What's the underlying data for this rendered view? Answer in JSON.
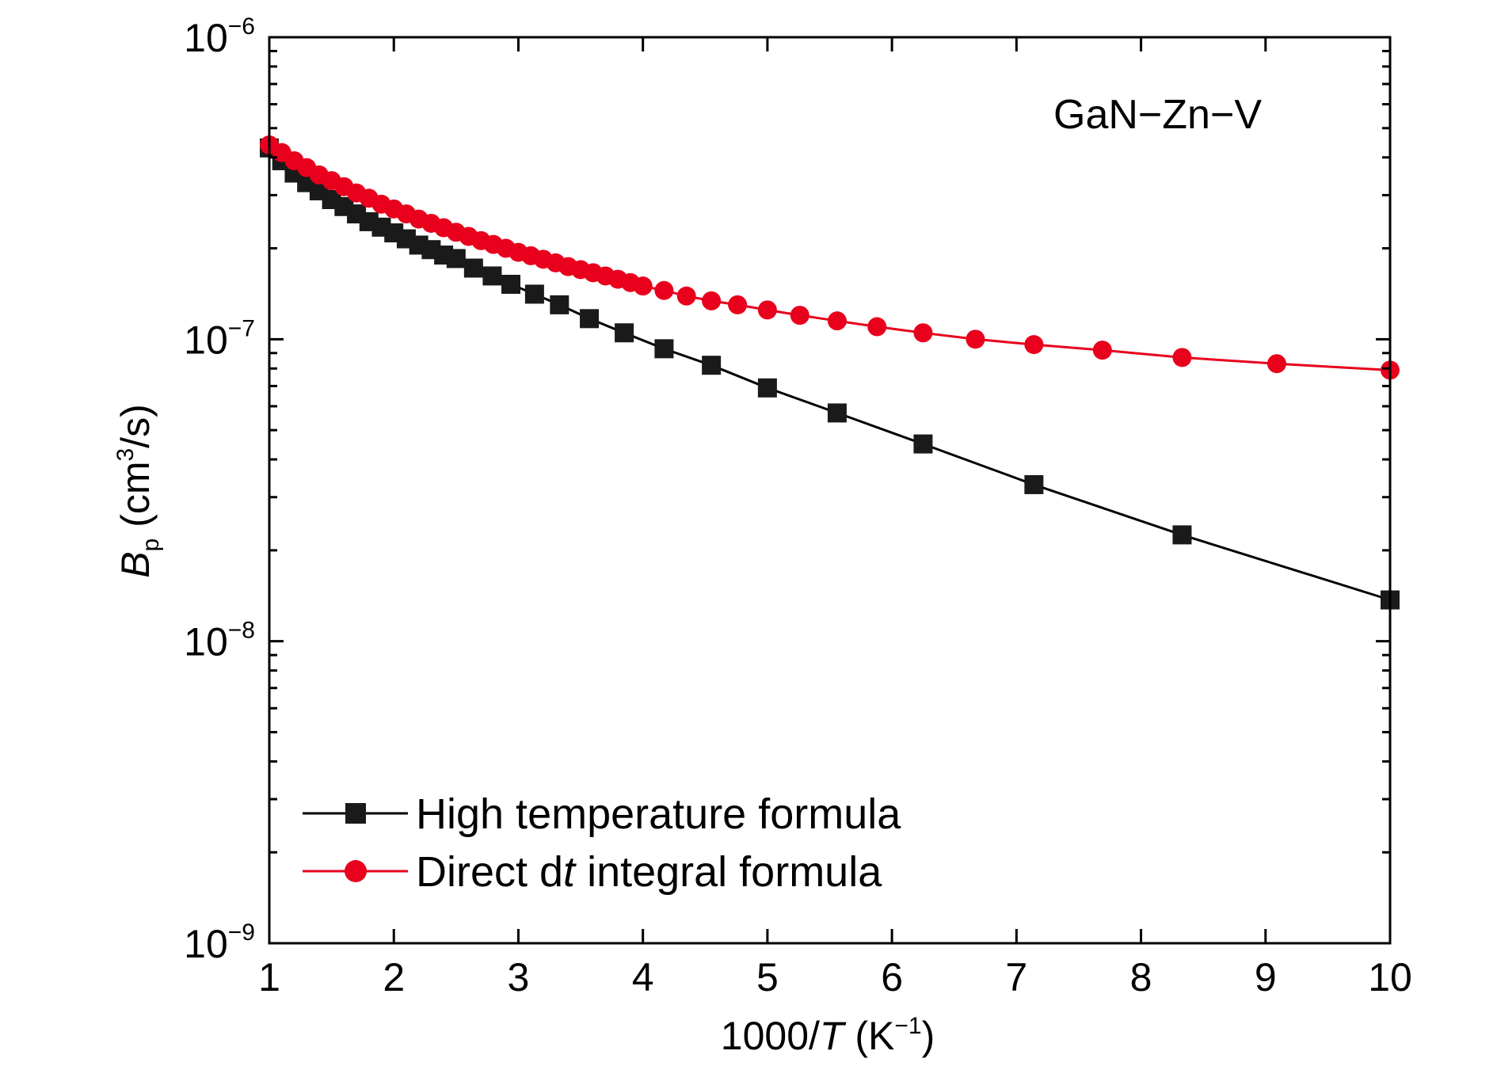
{
  "chart_data": {
    "type": "line",
    "annotation": "GaN−Zn−V",
    "xlabel": {
      "prefix": "1000/",
      "italic": "T",
      "unit_open": " (K",
      "unit_sup": "−1",
      "unit_close": ")"
    },
    "ylabel": {
      "italic": "B",
      "sub": "p",
      "unit_open": " (cm",
      "unit_sup": "3",
      "unit_close": "/s)"
    },
    "xlim": [
      1,
      10
    ],
    "ylim": [
      1e-09,
      1e-06
    ],
    "yscale": "log",
    "xticks": [
      "1",
      "2",
      "3",
      "4",
      "5",
      "6",
      "7",
      "8",
      "9",
      "10"
    ],
    "yticks": [
      {
        "base": "10",
        "exp": "−9",
        "value": 1e-09
      },
      {
        "base": "10",
        "exp": "−8",
        "value": 1e-08
      },
      {
        "base": "10",
        "exp": "−7",
        "value": 1e-07
      },
      {
        "base": "10",
        "exp": "−6",
        "value": 1e-06
      }
    ],
    "grid": false,
    "legend_position": "bottom-left",
    "series": [
      {
        "name": "High temperature formula",
        "color": "#000000",
        "line_color": "#000000",
        "marker": "square",
        "x": [
          1.0,
          1.1,
          1.2,
          1.3,
          1.4,
          1.5,
          1.6,
          1.7,
          1.8,
          1.9,
          2.0,
          2.1,
          2.2,
          2.3,
          2.4,
          2.5,
          2.64,
          2.79,
          2.94,
          3.13,
          3.33,
          3.57,
          3.85,
          4.17,
          4.55,
          5.0,
          5.56,
          6.25,
          7.14,
          8.33,
          10.0
        ],
        "y": [
          4.3e-07,
          3.9e-07,
          3.55e-07,
          3.3e-07,
          3.1e-07,
          2.9e-07,
          2.75e-07,
          2.6e-07,
          2.45e-07,
          2.35e-07,
          2.25e-07,
          2.15e-07,
          2.05e-07,
          1.98e-07,
          1.9e-07,
          1.85e-07,
          1.72e-07,
          1.62e-07,
          1.52e-07,
          1.41e-07,
          1.3e-07,
          1.17e-07,
          1.05e-07,
          9.3e-08,
          8.2e-08,
          6.9e-08,
          5.7e-08,
          4.5e-08,
          3.3e-08,
          2.25e-08,
          1.37e-08
        ]
      },
      {
        "name": "Direct dt integral formula",
        "legend_prefix": "Direct d",
        "legend_italic": "t",
        "legend_suffix": " integral formula",
        "color": "#e8001c",
        "line_color": "#e8001c",
        "marker": "circle",
        "x": [
          1.0,
          1.1,
          1.2,
          1.3,
          1.4,
          1.5,
          1.6,
          1.7,
          1.8,
          1.9,
          2.0,
          2.1,
          2.2,
          2.3,
          2.4,
          2.5,
          2.6,
          2.7,
          2.8,
          2.9,
          3.0,
          3.1,
          3.2,
          3.3,
          3.4,
          3.5,
          3.6,
          3.7,
          3.8,
          3.9,
          4.0,
          4.17,
          4.35,
          4.55,
          4.76,
          5.0,
          5.26,
          5.56,
          5.88,
          6.25,
          6.67,
          7.14,
          7.69,
          8.33,
          9.09,
          10.0
        ],
        "y": [
          4.4e-07,
          4.15e-07,
          3.9e-07,
          3.7e-07,
          3.5e-07,
          3.35e-07,
          3.2e-07,
          3.05e-07,
          2.93e-07,
          2.8e-07,
          2.7e-07,
          2.6e-07,
          2.5e-07,
          2.42e-07,
          2.34e-07,
          2.26e-07,
          2.19e-07,
          2.12e-07,
          2.06e-07,
          2e-07,
          1.94e-07,
          1.89e-07,
          1.84e-07,
          1.79e-07,
          1.74e-07,
          1.7e-07,
          1.66e-07,
          1.62e-07,
          1.58e-07,
          1.54e-07,
          1.5e-07,
          1.45e-07,
          1.39e-07,
          1.34e-07,
          1.3e-07,
          1.25e-07,
          1.2e-07,
          1.15e-07,
          1.1e-07,
          1.05e-07,
          1e-07,
          9.6e-08,
          9.2e-08,
          8.7e-08,
          8.3e-08,
          7.9e-08
        ]
      }
    ]
  }
}
